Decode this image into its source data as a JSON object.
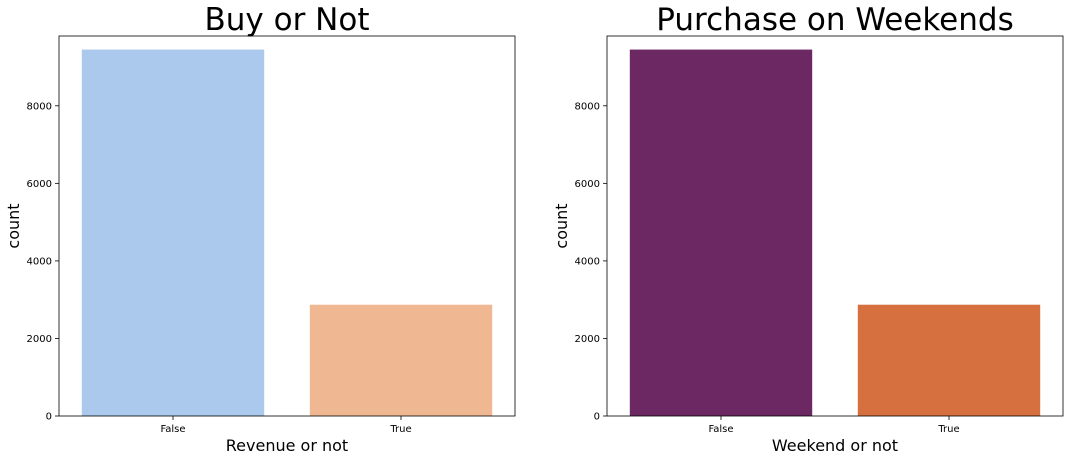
{
  "chart_data": [
    {
      "type": "bar",
      "title": "Buy or Not",
      "xlabel": "Revenue or not",
      "ylabel": "count",
      "categories": [
        "False",
        "True"
      ],
      "values": [
        9450,
        2870
      ],
      "colors": [
        "#abc9ec",
        "#f0b892"
      ],
      "ylim": [
        0,
        9800
      ],
      "yticks": [
        0,
        2000,
        4000,
        6000,
        8000
      ],
      "grid": false
    },
    {
      "type": "bar",
      "title": "Purchase on Weekends",
      "xlabel": "Weekend or not",
      "ylabel": "count",
      "categories": [
        "False",
        "True"
      ],
      "values": [
        9450,
        2870
      ],
      "colors": [
        "#6c2862",
        "#d6703e"
      ],
      "ylim": [
        0,
        9800
      ],
      "yticks": [
        0,
        2000,
        4000,
        6000,
        8000
      ],
      "grid": false
    }
  ]
}
